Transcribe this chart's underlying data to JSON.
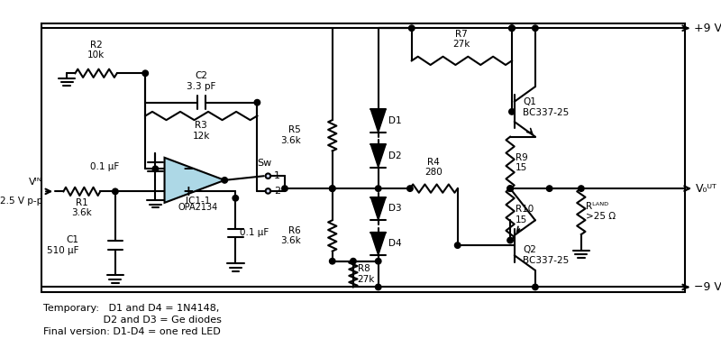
{
  "bg": "#ffffff",
  "fig_w": 8.0,
  "fig_h": 3.96,
  "dpi": 100,
  "pos9v": "+9 V",
  "neg9v": "−9 V",
  "vout_label": "V₀ᵁᵀ",
  "vin_label": "Vᴵᴺ",
  "vin_sub": "2.5 V p-p",
  "ic_label1": "IC1-1",
  "ic_label2": "OPA2134",
  "note1": "Temporary:   D1 and D4 = 1N4148,",
  "note2": "                   D2 and D3 = Ge diodes",
  "note3": "Final version: D1-D4 = one red LED",
  "opamp_fill": "#add8e6"
}
